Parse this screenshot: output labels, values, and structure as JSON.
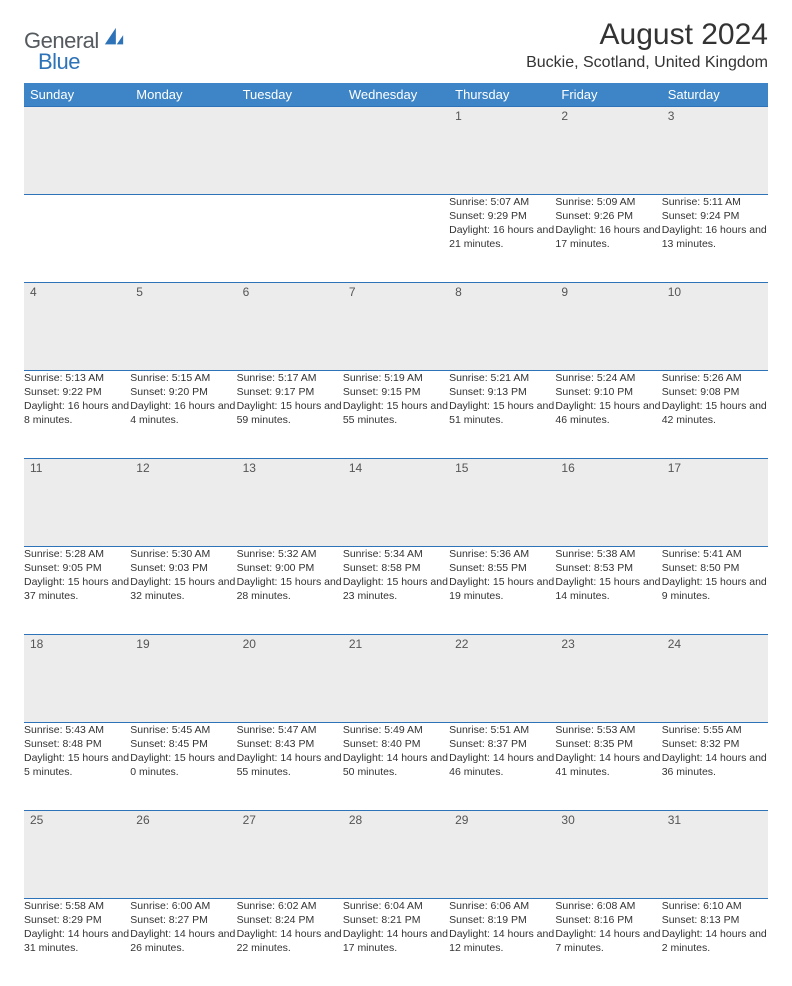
{
  "logo": {
    "word1": "General",
    "word2": "Blue",
    "mark_color": "#2e73b8",
    "text_gray": "#555a5f"
  },
  "header": {
    "title": "August 2024",
    "location": "Buckie, Scotland, United Kingdom"
  },
  "colors": {
    "header_bg": "#3d85c6",
    "header_fg": "#ffffff",
    "rule": "#2e73b8",
    "shade": "#ececec",
    "text": "#333333"
  },
  "weekdays": [
    "Sunday",
    "Monday",
    "Tuesday",
    "Wednesday",
    "Thursday",
    "Friday",
    "Saturday"
  ],
  "weeks": [
    [
      {
        "n": "",
        "sr": "",
        "ss": "",
        "dl": ""
      },
      {
        "n": "",
        "sr": "",
        "ss": "",
        "dl": ""
      },
      {
        "n": "",
        "sr": "",
        "ss": "",
        "dl": ""
      },
      {
        "n": "",
        "sr": "",
        "ss": "",
        "dl": ""
      },
      {
        "n": "1",
        "sr": "Sunrise: 5:07 AM",
        "ss": "Sunset: 9:29 PM",
        "dl": "Daylight: 16 hours and 21 minutes."
      },
      {
        "n": "2",
        "sr": "Sunrise: 5:09 AM",
        "ss": "Sunset: 9:26 PM",
        "dl": "Daylight: 16 hours and 17 minutes."
      },
      {
        "n": "3",
        "sr": "Sunrise: 5:11 AM",
        "ss": "Sunset: 9:24 PM",
        "dl": "Daylight: 16 hours and 13 minutes."
      }
    ],
    [
      {
        "n": "4",
        "sr": "Sunrise: 5:13 AM",
        "ss": "Sunset: 9:22 PM",
        "dl": "Daylight: 16 hours and 8 minutes."
      },
      {
        "n": "5",
        "sr": "Sunrise: 5:15 AM",
        "ss": "Sunset: 9:20 PM",
        "dl": "Daylight: 16 hours and 4 minutes."
      },
      {
        "n": "6",
        "sr": "Sunrise: 5:17 AM",
        "ss": "Sunset: 9:17 PM",
        "dl": "Daylight: 15 hours and 59 minutes."
      },
      {
        "n": "7",
        "sr": "Sunrise: 5:19 AM",
        "ss": "Sunset: 9:15 PM",
        "dl": "Daylight: 15 hours and 55 minutes."
      },
      {
        "n": "8",
        "sr": "Sunrise: 5:21 AM",
        "ss": "Sunset: 9:13 PM",
        "dl": "Daylight: 15 hours and 51 minutes."
      },
      {
        "n": "9",
        "sr": "Sunrise: 5:24 AM",
        "ss": "Sunset: 9:10 PM",
        "dl": "Daylight: 15 hours and 46 minutes."
      },
      {
        "n": "10",
        "sr": "Sunrise: 5:26 AM",
        "ss": "Sunset: 9:08 PM",
        "dl": "Daylight: 15 hours and 42 minutes."
      }
    ],
    [
      {
        "n": "11",
        "sr": "Sunrise: 5:28 AM",
        "ss": "Sunset: 9:05 PM",
        "dl": "Daylight: 15 hours and 37 minutes."
      },
      {
        "n": "12",
        "sr": "Sunrise: 5:30 AM",
        "ss": "Sunset: 9:03 PM",
        "dl": "Daylight: 15 hours and 32 minutes."
      },
      {
        "n": "13",
        "sr": "Sunrise: 5:32 AM",
        "ss": "Sunset: 9:00 PM",
        "dl": "Daylight: 15 hours and 28 minutes."
      },
      {
        "n": "14",
        "sr": "Sunrise: 5:34 AM",
        "ss": "Sunset: 8:58 PM",
        "dl": "Daylight: 15 hours and 23 minutes."
      },
      {
        "n": "15",
        "sr": "Sunrise: 5:36 AM",
        "ss": "Sunset: 8:55 PM",
        "dl": "Daylight: 15 hours and 19 minutes."
      },
      {
        "n": "16",
        "sr": "Sunrise: 5:38 AM",
        "ss": "Sunset: 8:53 PM",
        "dl": "Daylight: 15 hours and 14 minutes."
      },
      {
        "n": "17",
        "sr": "Sunrise: 5:41 AM",
        "ss": "Sunset: 8:50 PM",
        "dl": "Daylight: 15 hours and 9 minutes."
      }
    ],
    [
      {
        "n": "18",
        "sr": "Sunrise: 5:43 AM",
        "ss": "Sunset: 8:48 PM",
        "dl": "Daylight: 15 hours and 5 minutes."
      },
      {
        "n": "19",
        "sr": "Sunrise: 5:45 AM",
        "ss": "Sunset: 8:45 PM",
        "dl": "Daylight: 15 hours and 0 minutes."
      },
      {
        "n": "20",
        "sr": "Sunrise: 5:47 AM",
        "ss": "Sunset: 8:43 PM",
        "dl": "Daylight: 14 hours and 55 minutes."
      },
      {
        "n": "21",
        "sr": "Sunrise: 5:49 AM",
        "ss": "Sunset: 8:40 PM",
        "dl": "Daylight: 14 hours and 50 minutes."
      },
      {
        "n": "22",
        "sr": "Sunrise: 5:51 AM",
        "ss": "Sunset: 8:37 PM",
        "dl": "Daylight: 14 hours and 46 minutes."
      },
      {
        "n": "23",
        "sr": "Sunrise: 5:53 AM",
        "ss": "Sunset: 8:35 PM",
        "dl": "Daylight: 14 hours and 41 minutes."
      },
      {
        "n": "24",
        "sr": "Sunrise: 5:55 AM",
        "ss": "Sunset: 8:32 PM",
        "dl": "Daylight: 14 hours and 36 minutes."
      }
    ],
    [
      {
        "n": "25",
        "sr": "Sunrise: 5:58 AM",
        "ss": "Sunset: 8:29 PM",
        "dl": "Daylight: 14 hours and 31 minutes."
      },
      {
        "n": "26",
        "sr": "Sunrise: 6:00 AM",
        "ss": "Sunset: 8:27 PM",
        "dl": "Daylight: 14 hours and 26 minutes."
      },
      {
        "n": "27",
        "sr": "Sunrise: 6:02 AM",
        "ss": "Sunset: 8:24 PM",
        "dl": "Daylight: 14 hours and 22 minutes."
      },
      {
        "n": "28",
        "sr": "Sunrise: 6:04 AM",
        "ss": "Sunset: 8:21 PM",
        "dl": "Daylight: 14 hours and 17 minutes."
      },
      {
        "n": "29",
        "sr": "Sunrise: 6:06 AM",
        "ss": "Sunset: 8:19 PM",
        "dl": "Daylight: 14 hours and 12 minutes."
      },
      {
        "n": "30",
        "sr": "Sunrise: 6:08 AM",
        "ss": "Sunset: 8:16 PM",
        "dl": "Daylight: 14 hours and 7 minutes."
      },
      {
        "n": "31",
        "sr": "Sunrise: 6:10 AM",
        "ss": "Sunset: 8:13 PM",
        "dl": "Daylight: 14 hours and 2 minutes."
      }
    ]
  ]
}
